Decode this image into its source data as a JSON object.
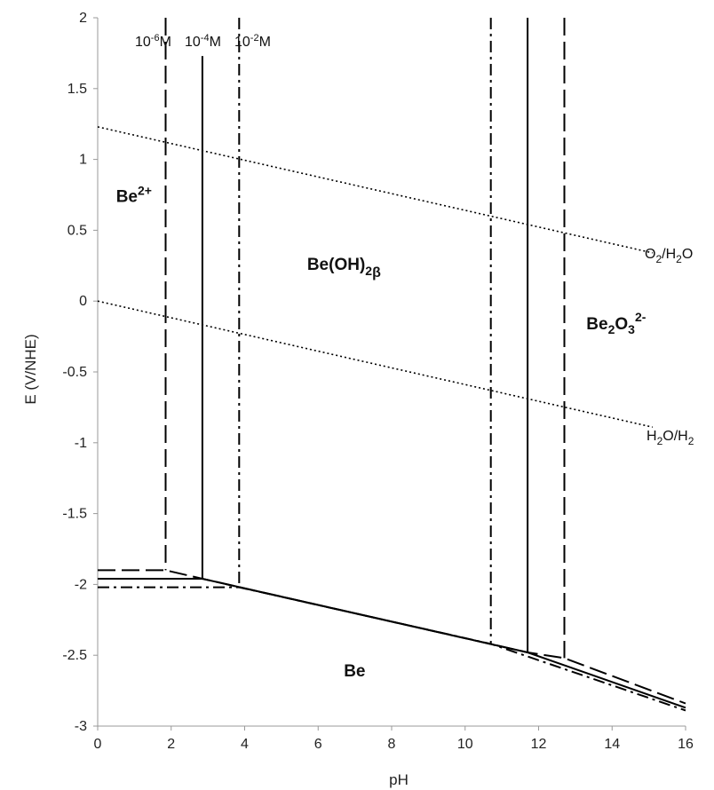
{
  "chart_data": {
    "type": "line",
    "title": "",
    "xlabel": "pH",
    "ylabel": "E (V/NHE)",
    "xlim": [
      0,
      16
    ],
    "ylim": [
      -3,
      2
    ],
    "xticks": [
      0,
      2,
      4,
      6,
      8,
      10,
      12,
      14,
      16
    ],
    "xtick_labels": [
      "0",
      "2",
      "4",
      "6",
      "8",
      "10",
      "12",
      "14",
      "16"
    ],
    "yticks": [
      2,
      1.5,
      1,
      0.5,
      0,
      -0.5,
      -1,
      -1.5,
      -2,
      -2.5,
      -3
    ],
    "ytick_labels": [
      "2",
      "1.5",
      "1",
      "0.5",
      "0",
      "-0.5",
      "-1",
      "-1.5",
      "-2",
      "-2.5",
      "-3"
    ],
    "grid": false,
    "legend": "none",
    "series": [
      {
        "style": "dashed",
        "label_base": "10",
        "label_exp": "-6",
        "label_unit": "M",
        "segments": [
          [
            [
              1.85,
              2
            ],
            [
              1.85,
              -1.9
            ]
          ],
          [
            [
              0,
              -1.9
            ],
            [
              1.85,
              -1.9
            ],
            [
              2.85,
              -1.96
            ],
            [
              11.7,
              -2.48
            ],
            [
              12.7,
              -2.52
            ],
            [
              16,
              -2.84
            ]
          ],
          [
            [
              12.7,
              2
            ],
            [
              12.7,
              -2.52
            ]
          ]
        ]
      },
      {
        "style": "solid",
        "label_base": "10",
        "label_exp": "-4",
        "label_unit": "M",
        "segments": [
          [
            [
              2.85,
              1.73
            ],
            [
              2.85,
              -1.96
            ]
          ],
          [
            [
              0,
              -1.96
            ],
            [
              2.85,
              -1.96
            ],
            [
              11.7,
              -2.48
            ],
            [
              16,
              -2.87
            ]
          ],
          [
            [
              11.7,
              2
            ],
            [
              11.7,
              -2.48
            ]
          ]
        ]
      },
      {
        "style": "dashdot",
        "label_base": "10",
        "label_exp": "-2",
        "label_unit": "M",
        "segments": [
          [
            [
              3.85,
              2
            ],
            [
              3.85,
              -2.02
            ]
          ],
          [
            [
              0,
              -2.02
            ],
            [
              3.85,
              -2.02
            ],
            [
              10.7,
              -2.42
            ],
            [
              16,
              -2.89
            ]
          ],
          [
            [
              10.7,
              2
            ],
            [
              10.7,
              -2.42
            ]
          ]
        ]
      },
      {
        "style": "dotted",
        "label_base": "O",
        "label_sub1": "2",
        "label_mid": "/H",
        "label_sub2": "2",
        "label_tail": "O",
        "points": [
          [
            0,
            1.23
          ],
          [
            15.1,
            0.34
          ]
        ]
      },
      {
        "style": "dotted",
        "label_base": "H",
        "label_sub1": "2",
        "label_mid": "O/H",
        "label_sub2": "2",
        "label_tail": "",
        "points": [
          [
            0,
            0
          ],
          [
            15.1,
            -0.89
          ]
        ]
      }
    ],
    "regions": [
      {
        "base": "Be",
        "sup": "2+",
        "sub": "",
        "tail": "",
        "x": 0.5,
        "y": 0.7
      },
      {
        "base": "Be(OH)",
        "sup": "",
        "sub": "2",
        "tail": "β",
        "x": 5.7,
        "y": 0.22
      },
      {
        "base": "Be",
        "sup": "2-",
        "sub": "2",
        "tail": "",
        "mid": "O",
        "sub2": "3",
        "x": 13.3,
        "y": -0.2
      },
      {
        "base": "Be",
        "sup": "",
        "sub": "",
        "tail": "",
        "x": 6.7,
        "y": -2.65
      }
    ]
  }
}
